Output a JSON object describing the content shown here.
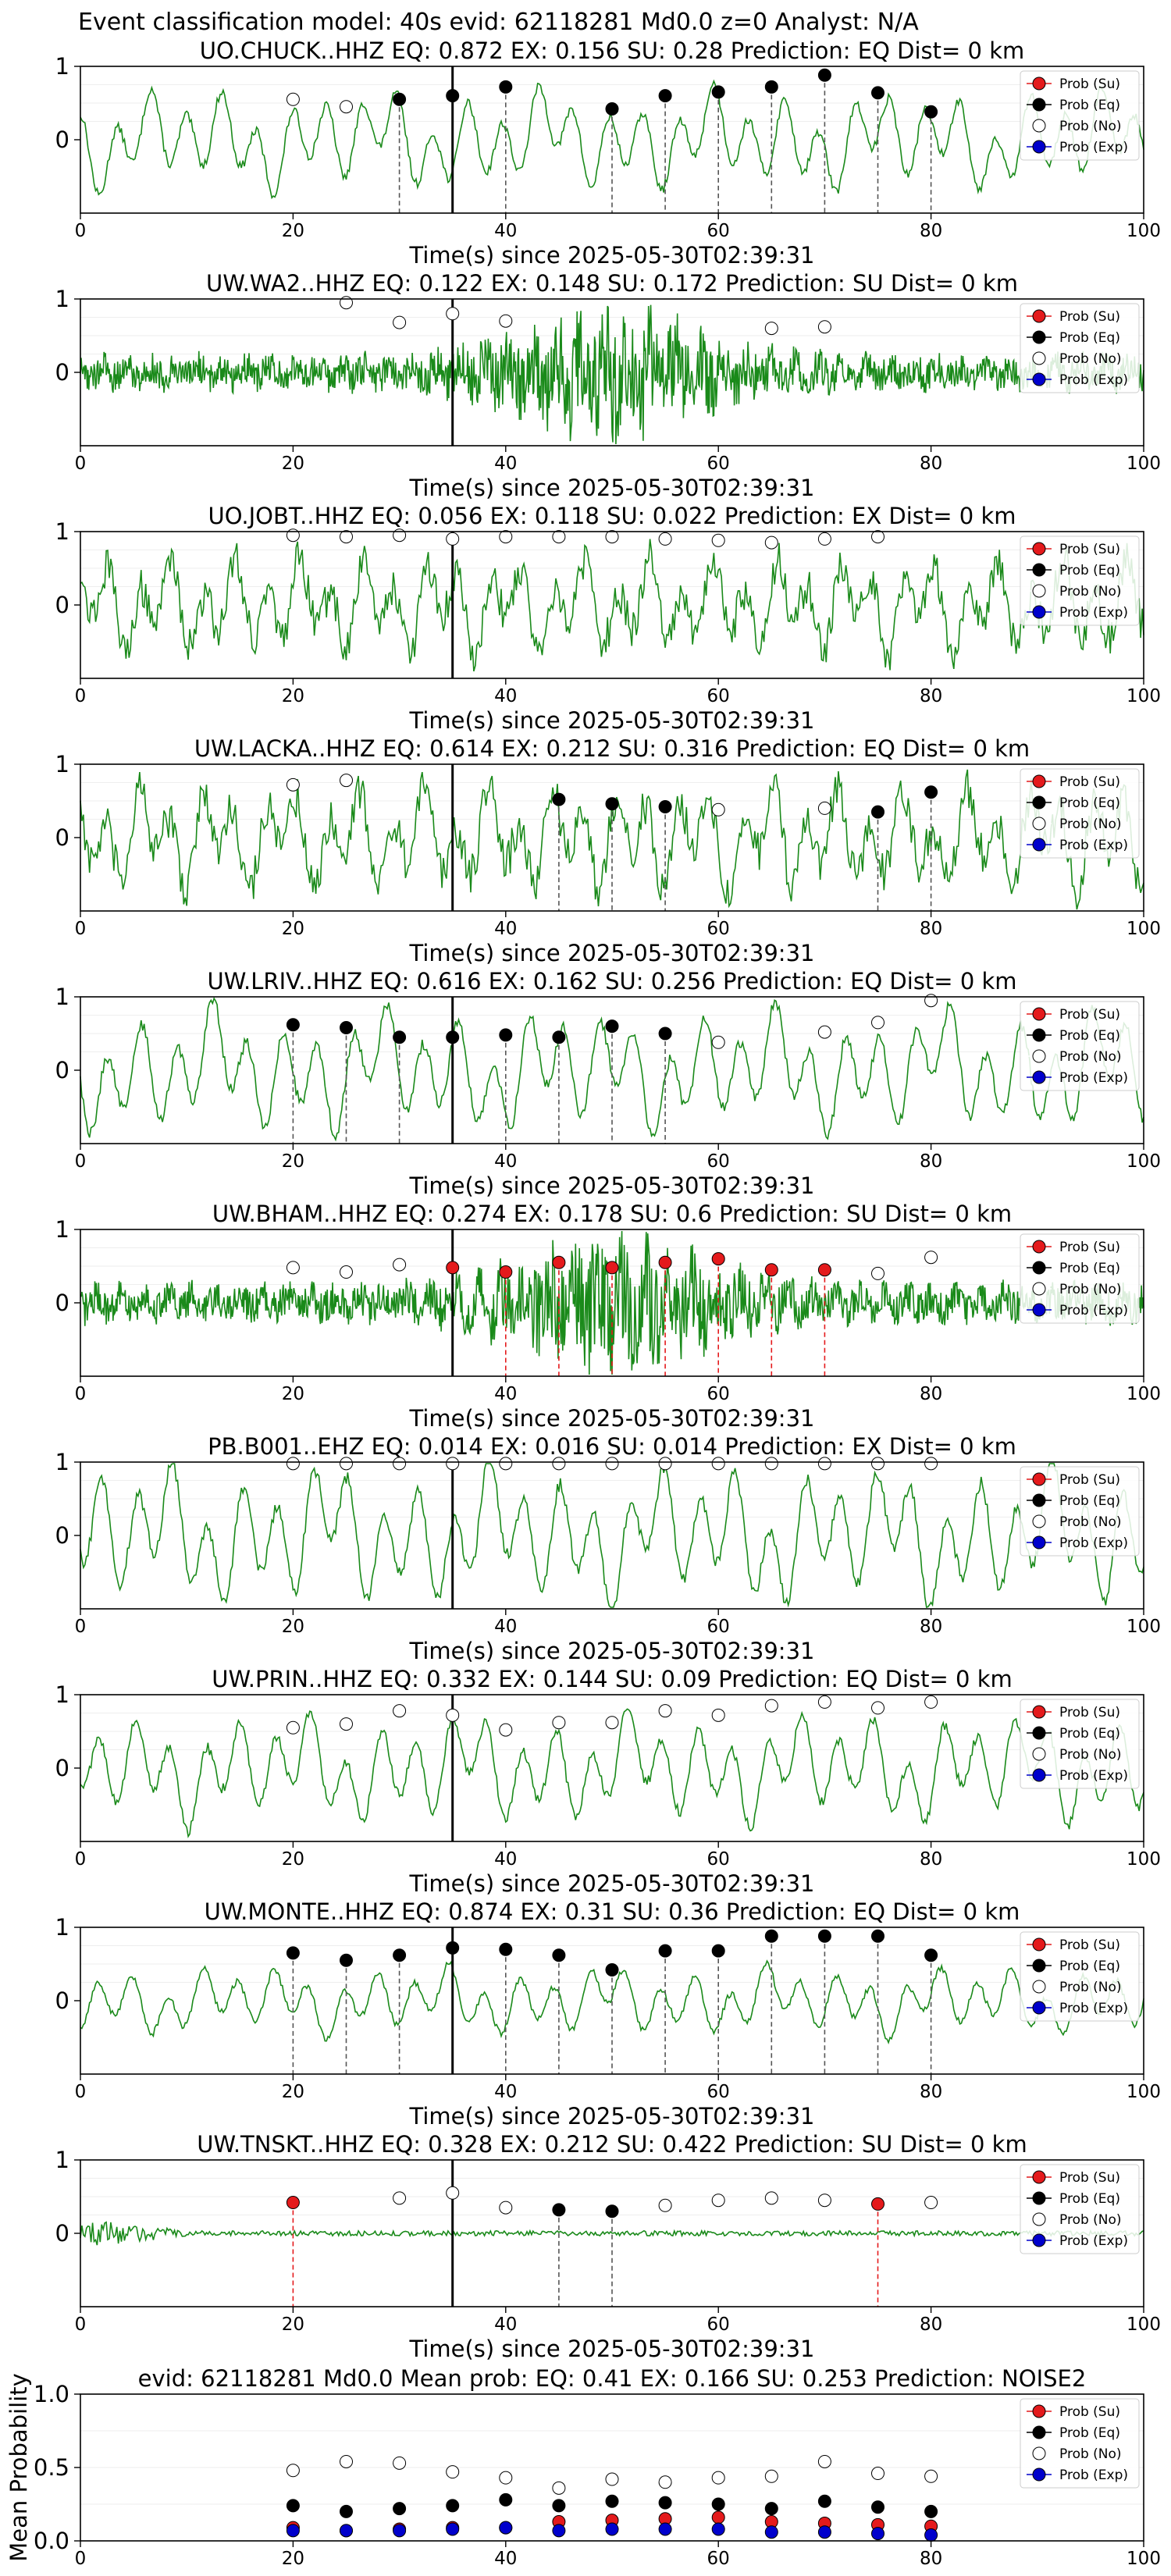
{
  "suptitle": "Event classification model: 40s evid: 62118281 Md0.0 z=0 Analyst: N/A",
  "xlabel": "Time(s) since 2025-05-30T02:39:31",
  "legend": {
    "entries": [
      {
        "label": "Prob (Su)",
        "fill": "#e41a1c"
      },
      {
        "label": "Prob (Eq)",
        "fill": "#000000"
      },
      {
        "label": "Prob (No)",
        "fill": "#ffffff"
      },
      {
        "label": "Prob (Exp)",
        "fill": "#0000cc"
      }
    ]
  },
  "colors": {
    "trace": "#1a8a1a",
    "eq_line": "#555555",
    "su_line": "#e41a1c",
    "arrival": "#000000"
  },
  "chart_data": [
    {
      "type": "line",
      "title": "UO.CHUCK..HHZ   EQ: 0.872  EX: 0.156  SU: 0.28   Prediction: EQ    Dist= 0 km",
      "xlim": [
        0,
        100
      ],
      "ylim": [
        -1,
        1
      ],
      "xticks": [
        0,
        20,
        40,
        60,
        80,
        100
      ],
      "yticks": [
        1,
        0
      ],
      "arrival": 35,
      "noise": "smooth",
      "amp": 0.32,
      "markers": [
        {
          "t": 20,
          "p": 0.55,
          "cls": "No"
        },
        {
          "t": 25,
          "p": 0.45,
          "cls": "No"
        },
        {
          "t": 30,
          "p": 0.55,
          "cls": "Eq"
        },
        {
          "t": 35,
          "p": 0.6,
          "cls": "Eq"
        },
        {
          "t": 40,
          "p": 0.72,
          "cls": "Eq"
        },
        {
          "t": 50,
          "p": 0.42,
          "cls": "Eq"
        },
        {
          "t": 55,
          "p": 0.6,
          "cls": "Eq"
        },
        {
          "t": 60,
          "p": 0.65,
          "cls": "Eq"
        },
        {
          "t": 65,
          "p": 0.72,
          "cls": "Eq"
        },
        {
          "t": 70,
          "p": 0.88,
          "cls": "Eq"
        },
        {
          "t": 75,
          "p": 0.64,
          "cls": "Eq"
        },
        {
          "t": 80,
          "p": 0.38,
          "cls": "Eq"
        }
      ]
    },
    {
      "type": "line",
      "title": "UW.WA2..HHZ   EQ: 0.122  EX: 0.148  SU: 0.172   Prediction: SU    Dist= 0 km",
      "xlim": [
        0,
        100
      ],
      "ylim": [
        -1,
        1
      ],
      "xticks": [
        0,
        20,
        40,
        60,
        80,
        100
      ],
      "yticks": [
        1,
        0
      ],
      "arrival": 35,
      "noise": "dense",
      "amp": 0.28,
      "markers": [
        {
          "t": 25,
          "p": 0.95,
          "cls": "No"
        },
        {
          "t": 30,
          "p": 0.68,
          "cls": "No"
        },
        {
          "t": 35,
          "p": 0.8,
          "cls": "No"
        },
        {
          "t": 40,
          "p": 0.7,
          "cls": "No"
        },
        {
          "t": 65,
          "p": 0.6,
          "cls": "No"
        },
        {
          "t": 70,
          "p": 0.62,
          "cls": "No"
        }
      ]
    },
    {
      "type": "line",
      "title": "UO.JOBT..HHZ   EQ: 0.056  EX: 0.118  SU: 0.022   Prediction: EX    Dist= 0 km",
      "xlim": [
        0,
        100
      ],
      "ylim": [
        -1,
        1
      ],
      "xticks": [
        0,
        20,
        40,
        60,
        80,
        100
      ],
      "yticks": [
        1,
        0
      ],
      "arrival": 35,
      "noise": "rough",
      "amp": 0.35,
      "markers": [
        {
          "t": 20,
          "p": 0.95,
          "cls": "No"
        },
        {
          "t": 25,
          "p": 0.93,
          "cls": "No"
        },
        {
          "t": 30,
          "p": 0.95,
          "cls": "No"
        },
        {
          "t": 35,
          "p": 0.9,
          "cls": "No"
        },
        {
          "t": 40,
          "p": 0.93,
          "cls": "No"
        },
        {
          "t": 45,
          "p": 0.93,
          "cls": "No"
        },
        {
          "t": 50,
          "p": 0.93,
          "cls": "No"
        },
        {
          "t": 55,
          "p": 0.9,
          "cls": "No"
        },
        {
          "t": 60,
          "p": 0.88,
          "cls": "No"
        },
        {
          "t": 65,
          "p": 0.85,
          "cls": "No"
        },
        {
          "t": 70,
          "p": 0.9,
          "cls": "No"
        },
        {
          "t": 75,
          "p": 0.93,
          "cls": "No"
        }
      ]
    },
    {
      "type": "line",
      "title": "UW.LACKA..HHZ   EQ: 0.614  EX: 0.212  SU: 0.316   Prediction: EQ    Dist= 0 km",
      "xlim": [
        0,
        100
      ],
      "ylim": [
        -1,
        1
      ],
      "xticks": [
        0,
        20,
        40,
        60,
        80,
        100
      ],
      "yticks": [
        1,
        0
      ],
      "arrival": 35,
      "noise": "rough",
      "amp": 0.38,
      "markers": [
        {
          "t": 20,
          "p": 0.72,
          "cls": "No"
        },
        {
          "t": 25,
          "p": 0.78,
          "cls": "No"
        },
        {
          "t": 45,
          "p": 0.52,
          "cls": "Eq"
        },
        {
          "t": 50,
          "p": 0.46,
          "cls": "Eq"
        },
        {
          "t": 55,
          "p": 0.42,
          "cls": "Eq"
        },
        {
          "t": 60,
          "p": 0.38,
          "cls": "No"
        },
        {
          "t": 70,
          "p": 0.4,
          "cls": "No"
        },
        {
          "t": 75,
          "p": 0.35,
          "cls": "Eq"
        },
        {
          "t": 80,
          "p": 0.62,
          "cls": "Eq"
        }
      ]
    },
    {
      "type": "line",
      "title": "UW.LRIV..HHZ   EQ: 0.616  EX: 0.162  SU: 0.256   Prediction: EQ    Dist= 0 km",
      "xlim": [
        0,
        100
      ],
      "ylim": [
        -1,
        1
      ],
      "xticks": [
        0,
        20,
        40,
        60,
        80,
        100
      ],
      "yticks": [
        1,
        0
      ],
      "arrival": 35,
      "noise": "smooth",
      "amp": 0.4,
      "markers": [
        {
          "t": 20,
          "p": 0.62,
          "cls": "Eq"
        },
        {
          "t": 25,
          "p": 0.58,
          "cls": "Eq"
        },
        {
          "t": 30,
          "p": 0.45,
          "cls": "Eq"
        },
        {
          "t": 35,
          "p": 0.45,
          "cls": "Eq"
        },
        {
          "t": 40,
          "p": 0.48,
          "cls": "Eq"
        },
        {
          "t": 45,
          "p": 0.45,
          "cls": "Eq"
        },
        {
          "t": 50,
          "p": 0.6,
          "cls": "Eq"
        },
        {
          "t": 55,
          "p": 0.5,
          "cls": "Eq"
        },
        {
          "t": 60,
          "p": 0.38,
          "cls": "No"
        },
        {
          "t": 70,
          "p": 0.52,
          "cls": "No"
        },
        {
          "t": 75,
          "p": 0.65,
          "cls": "No"
        },
        {
          "t": 80,
          "p": 0.95,
          "cls": "No"
        }
      ]
    },
    {
      "type": "line",
      "title": "UW.BHAM..HHZ   EQ: 0.274  EX: 0.178  SU: 0.6   Prediction: SU    Dist= 0 km",
      "xlim": [
        0,
        100
      ],
      "ylim": [
        -1,
        1
      ],
      "xticks": [
        0,
        20,
        40,
        60,
        80,
        100
      ],
      "yticks": [
        1,
        0
      ],
      "arrival": 35,
      "noise": "dense",
      "amp": 0.3,
      "markers": [
        {
          "t": 20,
          "p": 0.48,
          "cls": "No"
        },
        {
          "t": 25,
          "p": 0.42,
          "cls": "No"
        },
        {
          "t": 30,
          "p": 0.52,
          "cls": "No"
        },
        {
          "t": 35,
          "p": 0.48,
          "cls": "Su"
        },
        {
          "t": 40,
          "p": 0.42,
          "cls": "Su"
        },
        {
          "t": 45,
          "p": 0.55,
          "cls": "Su"
        },
        {
          "t": 50,
          "p": 0.48,
          "cls": "Su"
        },
        {
          "t": 55,
          "p": 0.55,
          "cls": "Su"
        },
        {
          "t": 60,
          "p": 0.6,
          "cls": "Su"
        },
        {
          "t": 65,
          "p": 0.45,
          "cls": "Su"
        },
        {
          "t": 70,
          "p": 0.45,
          "cls": "Su"
        },
        {
          "t": 75,
          "p": 0.4,
          "cls": "No"
        },
        {
          "t": 80,
          "p": 0.62,
          "cls": "No"
        }
      ]
    },
    {
      "type": "line",
      "title": "PB.B001..EHZ   EQ: 0.014  EX: 0.016  SU: 0.014   Prediction: EX    Dist= 0 km",
      "xlim": [
        0,
        100
      ],
      "ylim": [
        -1,
        1
      ],
      "xticks": [
        0,
        20,
        40,
        60,
        80,
        100
      ],
      "yticks": [
        1,
        0
      ],
      "arrival": 35,
      "noise": "smooth",
      "amp": 0.45,
      "markers": [
        {
          "t": 20,
          "p": 0.98,
          "cls": "No"
        },
        {
          "t": 25,
          "p": 0.98,
          "cls": "No"
        },
        {
          "t": 30,
          "p": 0.98,
          "cls": "No"
        },
        {
          "t": 35,
          "p": 0.98,
          "cls": "No"
        },
        {
          "t": 40,
          "p": 0.98,
          "cls": "No"
        },
        {
          "t": 45,
          "p": 0.98,
          "cls": "No"
        },
        {
          "t": 50,
          "p": 0.98,
          "cls": "No"
        },
        {
          "t": 55,
          "p": 0.98,
          "cls": "No"
        },
        {
          "t": 60,
          "p": 0.98,
          "cls": "No"
        },
        {
          "t": 65,
          "p": 0.98,
          "cls": "No"
        },
        {
          "t": 70,
          "p": 0.98,
          "cls": "No"
        },
        {
          "t": 75,
          "p": 0.98,
          "cls": "No"
        },
        {
          "t": 80,
          "p": 0.98,
          "cls": "No"
        }
      ]
    },
    {
      "type": "line",
      "title": "UW.PRIN..HHZ   EQ: 0.332  EX: 0.144  SU: 0.09   Prediction: EQ    Dist= 0 km",
      "xlim": [
        0,
        100
      ],
      "ylim": [
        -1,
        1
      ],
      "xticks": [
        0,
        20,
        40,
        60,
        80,
        100
      ],
      "yticks": [
        1,
        0
      ],
      "arrival": 35,
      "noise": "smooth",
      "amp": 0.35,
      "markers": [
        {
          "t": 20,
          "p": 0.55,
          "cls": "No"
        },
        {
          "t": 25,
          "p": 0.6,
          "cls": "No"
        },
        {
          "t": 30,
          "p": 0.78,
          "cls": "No"
        },
        {
          "t": 35,
          "p": 0.72,
          "cls": "No"
        },
        {
          "t": 40,
          "p": 0.52,
          "cls": "No"
        },
        {
          "t": 45,
          "p": 0.62,
          "cls": "No"
        },
        {
          "t": 50,
          "p": 0.62,
          "cls": "No"
        },
        {
          "t": 55,
          "p": 0.78,
          "cls": "No"
        },
        {
          "t": 60,
          "p": 0.72,
          "cls": "No"
        },
        {
          "t": 65,
          "p": 0.85,
          "cls": "No"
        },
        {
          "t": 70,
          "p": 0.9,
          "cls": "No"
        },
        {
          "t": 75,
          "p": 0.82,
          "cls": "No"
        },
        {
          "t": 80,
          "p": 0.9,
          "cls": "No"
        }
      ]
    },
    {
      "type": "line",
      "title": "UW.MONTE..HHZ   EQ: 0.874  EX: 0.31  SU: 0.36   Prediction: EQ    Dist= 0 km",
      "xlim": [
        0,
        100
      ],
      "ylim": [
        -1,
        1
      ],
      "xticks": [
        0,
        20,
        40,
        60,
        80,
        100
      ],
      "yticks": [
        1,
        0
      ],
      "arrival": 35,
      "noise": "smooth",
      "amp": 0.22,
      "markers": [
        {
          "t": 20,
          "p": 0.65,
          "cls": "Eq"
        },
        {
          "t": 25,
          "p": 0.55,
          "cls": "Eq"
        },
        {
          "t": 30,
          "p": 0.62,
          "cls": "Eq"
        },
        {
          "t": 35,
          "p": 0.72,
          "cls": "Eq"
        },
        {
          "t": 40,
          "p": 0.7,
          "cls": "Eq"
        },
        {
          "t": 45,
          "p": 0.62,
          "cls": "Eq"
        },
        {
          "t": 50,
          "p": 0.42,
          "cls": "Eq"
        },
        {
          "t": 55,
          "p": 0.68,
          "cls": "Eq"
        },
        {
          "t": 60,
          "p": 0.68,
          "cls": "Eq"
        },
        {
          "t": 65,
          "p": 0.88,
          "cls": "Eq"
        },
        {
          "t": 70,
          "p": 0.88,
          "cls": "Eq"
        },
        {
          "t": 75,
          "p": 0.88,
          "cls": "Eq"
        },
        {
          "t": 80,
          "p": 0.62,
          "cls": "Eq"
        }
      ]
    },
    {
      "type": "line",
      "title": "UW.TNSKT..HHZ   EQ: 0.328  EX: 0.212  SU: 0.422   Prediction: SU    Dist= 0 km",
      "xlim": [
        0,
        100
      ],
      "ylim": [
        -1,
        1
      ],
      "xticks": [
        0,
        20,
        40,
        60,
        80,
        100
      ],
      "yticks": [
        1,
        0
      ],
      "arrival": 35,
      "noise": "quiet",
      "amp": 0.06,
      "markers": [
        {
          "t": 20,
          "p": 0.42,
          "cls": "Su"
        },
        {
          "t": 30,
          "p": 0.48,
          "cls": "No"
        },
        {
          "t": 35,
          "p": 0.55,
          "cls": "No"
        },
        {
          "t": 40,
          "p": 0.35,
          "cls": "No"
        },
        {
          "t": 45,
          "p": 0.32,
          "cls": "Eq"
        },
        {
          "t": 50,
          "p": 0.3,
          "cls": "Eq"
        },
        {
          "t": 55,
          "p": 0.38,
          "cls": "No"
        },
        {
          "t": 60,
          "p": 0.45,
          "cls": "No"
        },
        {
          "t": 65,
          "p": 0.48,
          "cls": "No"
        },
        {
          "t": 70,
          "p": 0.45,
          "cls": "No"
        },
        {
          "t": 75,
          "p": 0.4,
          "cls": "Su"
        },
        {
          "t": 80,
          "p": 0.42,
          "cls": "No"
        }
      ]
    },
    {
      "type": "scatter",
      "title": "evid: 62118281  Md0.0   Mean prob:   EQ: 0.41  EX: 0.166  SU: 0.253   Prediction: NOISE2",
      "ylabel": "Mean Probability",
      "xlim": [
        0,
        100
      ],
      "ylim": [
        0,
        1
      ],
      "xticks": [
        0,
        20,
        40,
        60,
        80,
        100
      ],
      "yticks": [
        1.0,
        0.5,
        0.0
      ],
      "x": [
        20,
        25,
        30,
        35,
        40,
        45,
        50,
        55,
        60,
        65,
        70,
        75,
        80
      ],
      "series": [
        {
          "name": "Prob (Su)",
          "cls": "Su",
          "values": [
            0.09,
            0.07,
            0.08,
            0.09,
            0.09,
            0.13,
            0.14,
            0.15,
            0.16,
            0.13,
            0.12,
            0.11,
            0.1
          ]
        },
        {
          "name": "Prob (Eq)",
          "cls": "Eq",
          "values": [
            0.24,
            0.2,
            0.22,
            0.24,
            0.28,
            0.24,
            0.27,
            0.26,
            0.25,
            0.22,
            0.27,
            0.23,
            0.2
          ]
        },
        {
          "name": "Prob (No)",
          "cls": "No",
          "values": [
            0.48,
            0.54,
            0.53,
            0.47,
            0.43,
            0.36,
            0.42,
            0.4,
            0.43,
            0.44,
            0.54,
            0.46,
            0.44
          ]
        },
        {
          "name": "Prob (Exp)",
          "cls": "Exp",
          "values": [
            0.07,
            0.07,
            0.07,
            0.08,
            0.09,
            0.07,
            0.08,
            0.08,
            0.08,
            0.06,
            0.06,
            0.05,
            0.04
          ]
        }
      ]
    }
  ]
}
